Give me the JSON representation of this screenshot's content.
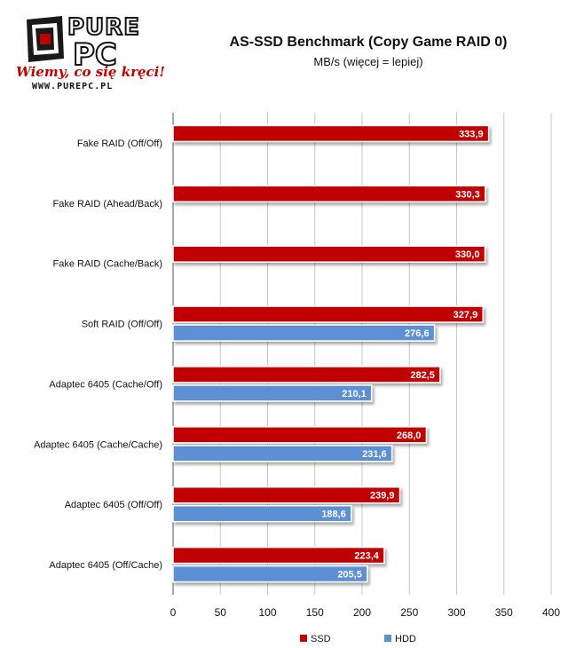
{
  "logo": {
    "name_top": "PURE",
    "name_bottom": "PC",
    "slogan": "Wiemy, co się kręci!",
    "url": "WWW.PUREPC.PL"
  },
  "chart_data": {
    "type": "bar",
    "orientation": "horizontal",
    "title": "AS-SSD Benchmark (Copy Game RAID 0)",
    "subtitle": "MB/s (więcej = lepiej)",
    "categories": [
      "Fake RAID (Off/Off)",
      "Fake RAID (Ahead/Back)",
      "Fake RAID (Cache/Back)",
      "Soft RAID (Off/Off)",
      "Adaptec 6405 (Cache/Off)",
      "Adaptec 6405 (Cache/Cache)",
      "Adaptec 6405 (Off/Off)",
      "Adaptec 6405 (Off/Cache)"
    ],
    "series": [
      {
        "name": "SSD",
        "color": "#c00000",
        "values": [
          333.9,
          330.3,
          330.0,
          327.9,
          282.5,
          268.0,
          239.9,
          223.4
        ],
        "labels": [
          "333,9",
          "330,3",
          "330,0",
          "327,9",
          "282,5",
          "268,0",
          "239,9",
          "223,4"
        ]
      },
      {
        "name": "HDD",
        "color": "#5b8fd4",
        "values": [
          null,
          null,
          null,
          276.6,
          210.1,
          231.6,
          188.6,
          205.5
        ],
        "labels": [
          "",
          "",
          "",
          "276,6",
          "210,1",
          "231,6",
          "188,6",
          "205,5"
        ]
      }
    ],
    "xlim": [
      0,
      400
    ],
    "xticks": [
      0,
      50,
      100,
      150,
      200,
      250,
      300,
      350,
      400
    ],
    "xtick_labels": [
      "0",
      "50",
      "100",
      "150",
      "200",
      "250",
      "300",
      "350",
      "400"
    ],
    "grid": true,
    "legend_position": "bottom"
  }
}
